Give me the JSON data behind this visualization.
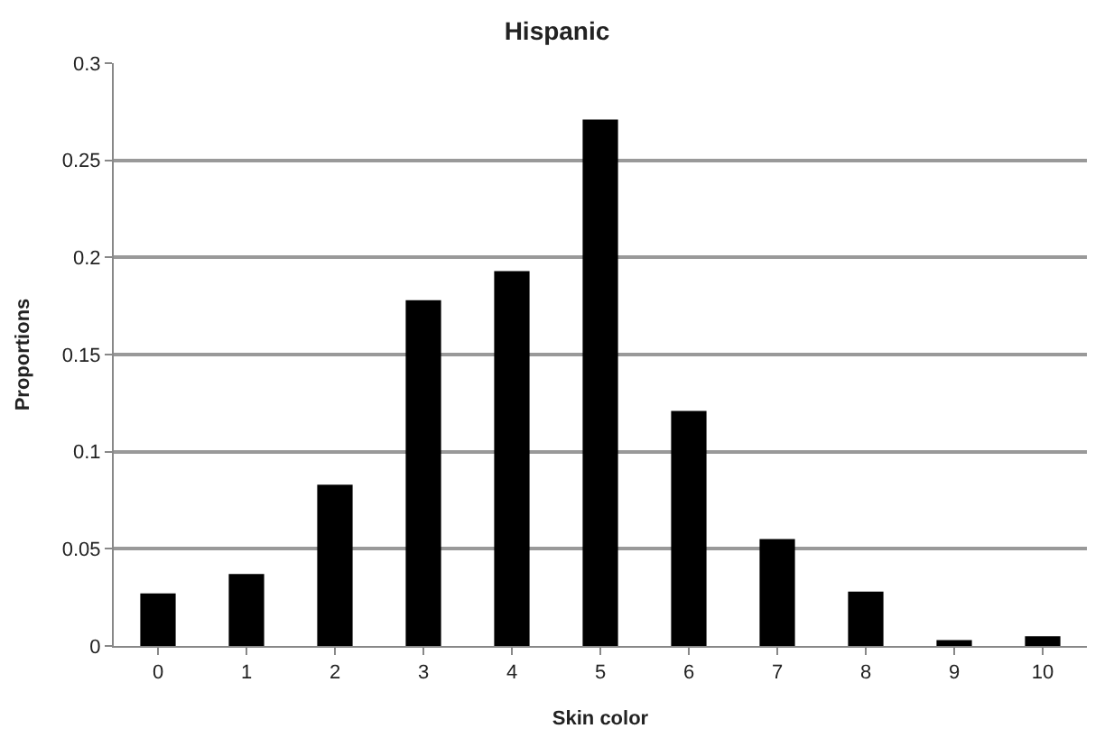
{
  "chart_data": {
    "type": "bar",
    "title": "Hispanic",
    "xlabel": "Skin color",
    "ylabel": "Proportions",
    "categories": [
      "0",
      "1",
      "2",
      "3",
      "4",
      "5",
      "6",
      "7",
      "8",
      "9",
      "10"
    ],
    "values": [
      0.027,
      0.037,
      0.083,
      0.178,
      0.193,
      0.271,
      0.121,
      0.055,
      0.028,
      0.003,
      0.005
    ],
    "color": "#000000",
    "ylim": [
      0,
      0.3
    ],
    "yticks": [
      0,
      0.05,
      0.1,
      0.15,
      0.2,
      0.25,
      0.3
    ],
    "grid": "y",
    "legend": false
  }
}
